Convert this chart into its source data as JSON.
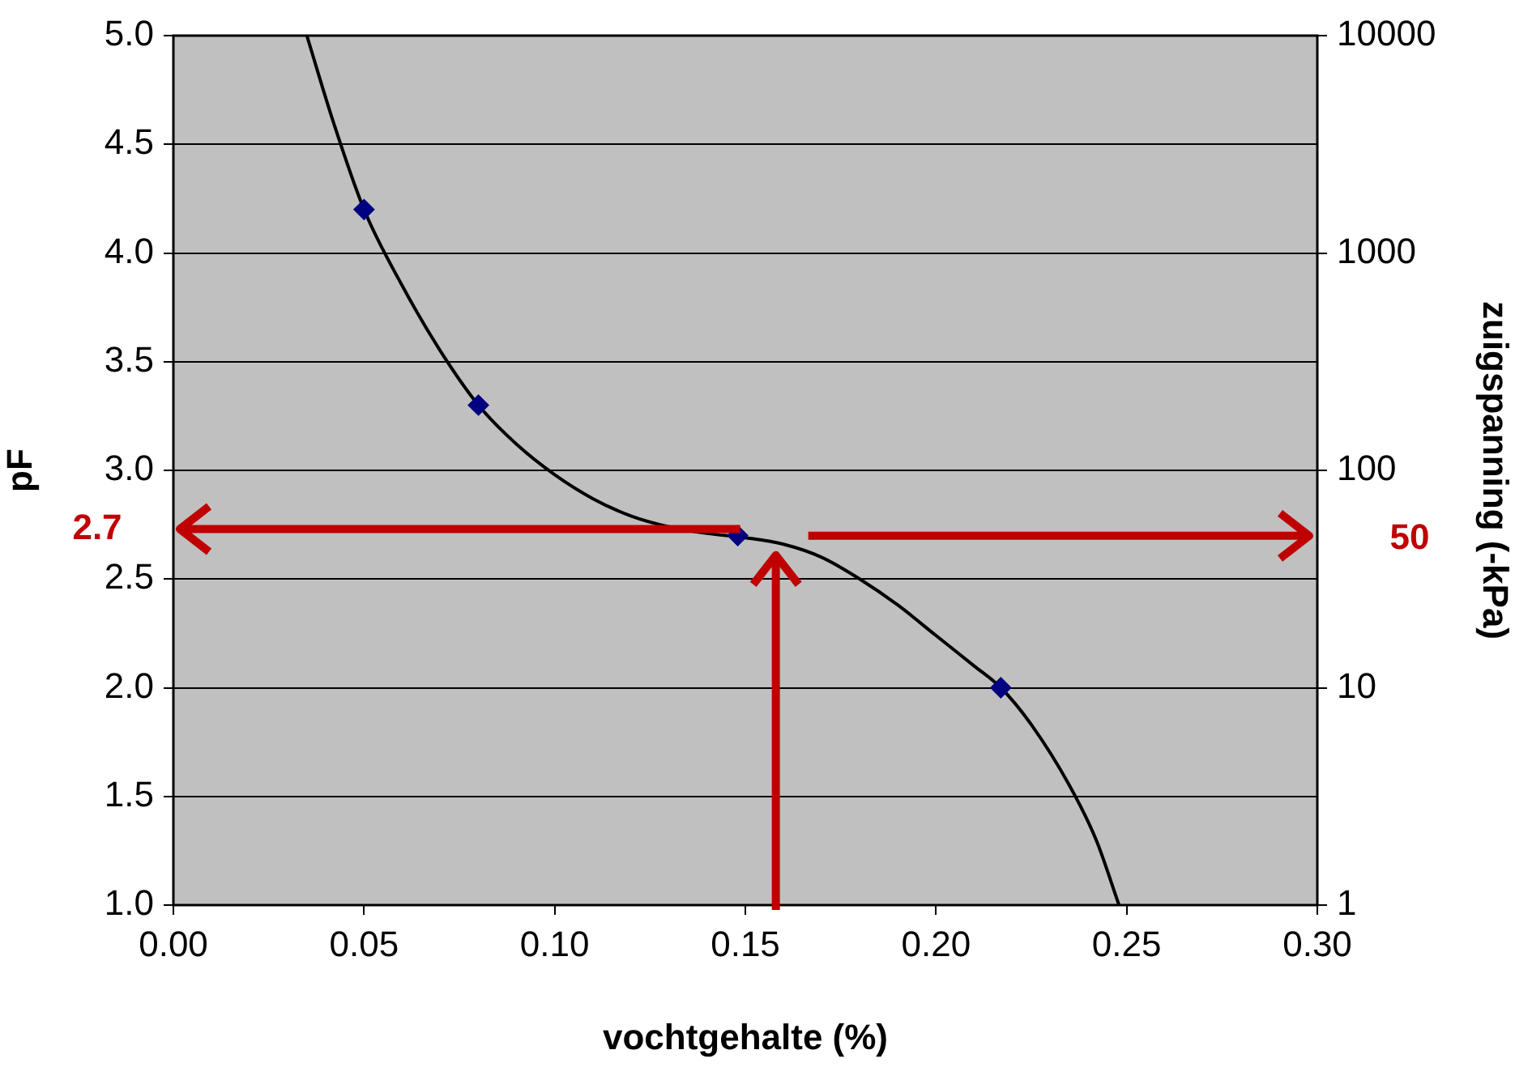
{
  "chart_data": {
    "type": "scatter",
    "xlabel": "vochtgehalte (%)",
    "ylabel": "pF",
    "y2label": "zuigspanning (-kPa)",
    "series": [
      {
        "type": "line",
        "color": "#000000",
        "marker": "none",
        "line_style": "solid",
        "x": [
          0.035,
          0.042,
          0.05,
          0.06,
          0.07,
          0.08,
          0.09,
          0.1,
          0.11,
          0.12,
          0.13,
          0.14,
          0.15,
          0.16,
          0.17,
          0.18,
          0.19,
          0.2,
          0.21,
          0.217,
          0.225,
          0.235,
          0.242,
          0.248
        ],
        "values": [
          5.0,
          4.6,
          4.2,
          3.85,
          3.55,
          3.3,
          3.12,
          2.98,
          2.87,
          2.79,
          2.74,
          2.71,
          2.69,
          2.66,
          2.6,
          2.5,
          2.38,
          2.24,
          2.1,
          2.0,
          1.83,
          1.55,
          1.3,
          1.0
        ]
      },
      {
        "type": "scatter",
        "color": "#000080",
        "marker": "diamond",
        "x": [
          0.05,
          0.08,
          0.148,
          0.217
        ],
        "values": [
          4.2,
          3.3,
          2.7,
          2.0
        ]
      }
    ],
    "xlim": [
      0,
      0.3
    ],
    "xticks": [
      {
        "value": 0,
        "label": "0.00"
      },
      {
        "value": 0.05,
        "label": "0.05"
      },
      {
        "value": 0.1,
        "label": "0.10"
      },
      {
        "value": 0.15,
        "label": "0.15"
      },
      {
        "value": 0.2,
        "label": "0.20"
      },
      {
        "value": 0.25,
        "label": "0.25"
      },
      {
        "value": 0.3,
        "label": "0.30"
      }
    ],
    "ylim": [
      1,
      5
    ],
    "yticks": [
      {
        "value": 1,
        "label": "1.0"
      },
      {
        "value": 1.5,
        "label": "1.5"
      },
      {
        "value": 2,
        "label": "2.0"
      },
      {
        "value": 2.5,
        "label": "2.5"
      },
      {
        "value": 3,
        "label": "3.0"
      },
      {
        "value": 3.5,
        "label": "3.5"
      },
      {
        "value": 4,
        "label": "4.0"
      },
      {
        "value": 4.5,
        "label": "4.5"
      },
      {
        "value": 5,
        "label": "5.0"
      }
    ],
    "y2lim": [
      1,
      10000
    ],
    "y2ticks": [
      1,
      10,
      100,
      1000,
      10000
    ],
    "log": "y2",
    "grid": "y",
    "legend": false,
    "ref_lines": [
      {
        "axis": "y",
        "value": 2.73,
        "label": "2.7",
        "color": "#c00000"
      },
      {
        "axis": "x",
        "value": 0.158,
        "color": "#c00000"
      },
      {
        "axis": "y2",
        "value": 50,
        "label": "50",
        "color": "#c00000"
      }
    ]
  }
}
